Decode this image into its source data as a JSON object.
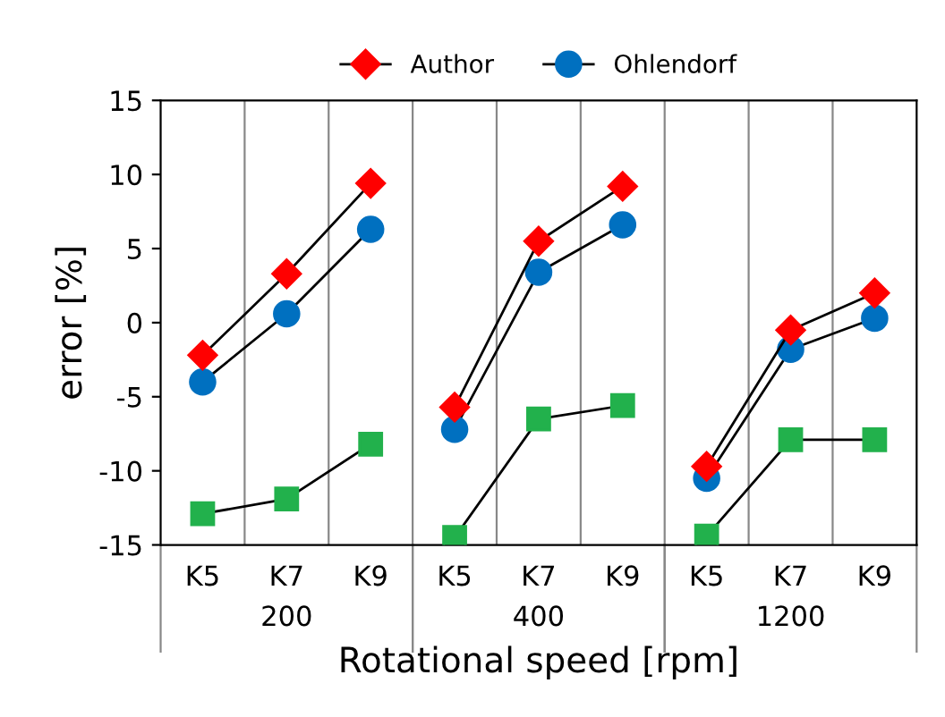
{
  "chart_data": {
    "type": "line",
    "xlabel": "Rotational speed [rpm]",
    "ylabel": "error [%]",
    "categories": [
      "K5",
      "K7",
      "K9",
      "K5",
      "K7",
      "K9",
      "K5",
      "K7",
      "K9"
    ],
    "annotations": [
      "200",
      "400",
      "1200"
    ],
    "series": [
      {
        "name": "Author",
        "color": "#ff0000",
        "marker": "diamond",
        "values": [
          -2.2,
          3.3,
          9.4,
          -5.7,
          5.5,
          9.2,
          -9.7,
          -0.5,
          2.0
        ]
      },
      {
        "color": "#22b14c",
        "marker": "square",
        "values": [
          -12.9,
          -11.9,
          -8.2,
          -14.5,
          -6.5,
          -5.6,
          -14.4,
          -7.9,
          -7.9
        ]
      },
      {
        "name": "Ohlendorf",
        "color": "#0070c0",
        "marker": "circle",
        "values": [
          -4.0,
          0.6,
          6.3,
          -7.2,
          3.4,
          6.6,
          -10.5,
          -1.8,
          0.3
        ]
      }
    ],
    "ylim": [
      -15,
      15
    ],
    "yticks": [
      -15,
      -10,
      -5,
      0,
      5,
      10,
      15
    ],
    "grid": "x",
    "legend": "top"
  }
}
